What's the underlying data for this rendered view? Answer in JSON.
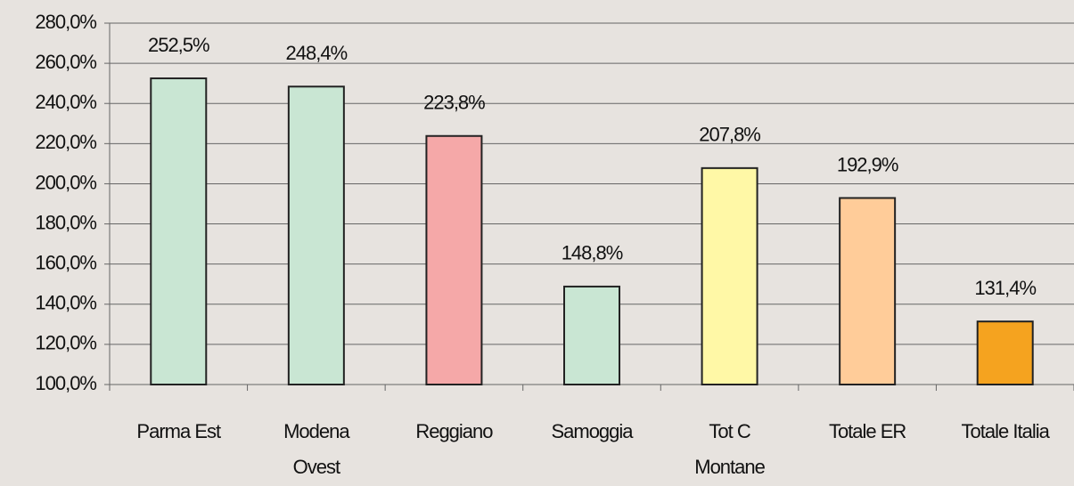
{
  "chart_data": {
    "type": "bar",
    "categories": [
      "Parma Est",
      "Modena\nOvest",
      "Reggiano",
      "Samoggia",
      "Tot C\nMontane",
      "Totale ER",
      "Totale Italia"
    ],
    "values": [
      252.5,
      248.4,
      223.8,
      148.8,
      207.8,
      192.9,
      131.4
    ],
    "value_labels": [
      "252,5%",
      "248,4%",
      "223,8%",
      "148,8%",
      "207,8%",
      "192,9%",
      "131,4%"
    ],
    "colors": [
      "#c9e6d3",
      "#c9e6d3",
      "#f5a8a8",
      "#c9e6d3",
      "#fff8a6",
      "#ffcc99",
      "#f5a31f"
    ],
    "ylim": [
      100,
      280
    ],
    "yticks": [
      {
        "value": 100,
        "label": "100,0%"
      },
      {
        "value": 120,
        "label": "120,0%"
      },
      {
        "value": 140,
        "label": "140,0%"
      },
      {
        "value": 160,
        "label": "160,0%"
      },
      {
        "value": 180,
        "label": "180,0%"
      },
      {
        "value": 200,
        "label": "200,0%"
      },
      {
        "value": 220,
        "label": "220,0%"
      },
      {
        "value": 240,
        "label": "240,0%"
      },
      {
        "value": 260,
        "label": "260,0%"
      },
      {
        "value": 280,
        "label": "280,0%"
      }
    ],
    "grid": true
  }
}
